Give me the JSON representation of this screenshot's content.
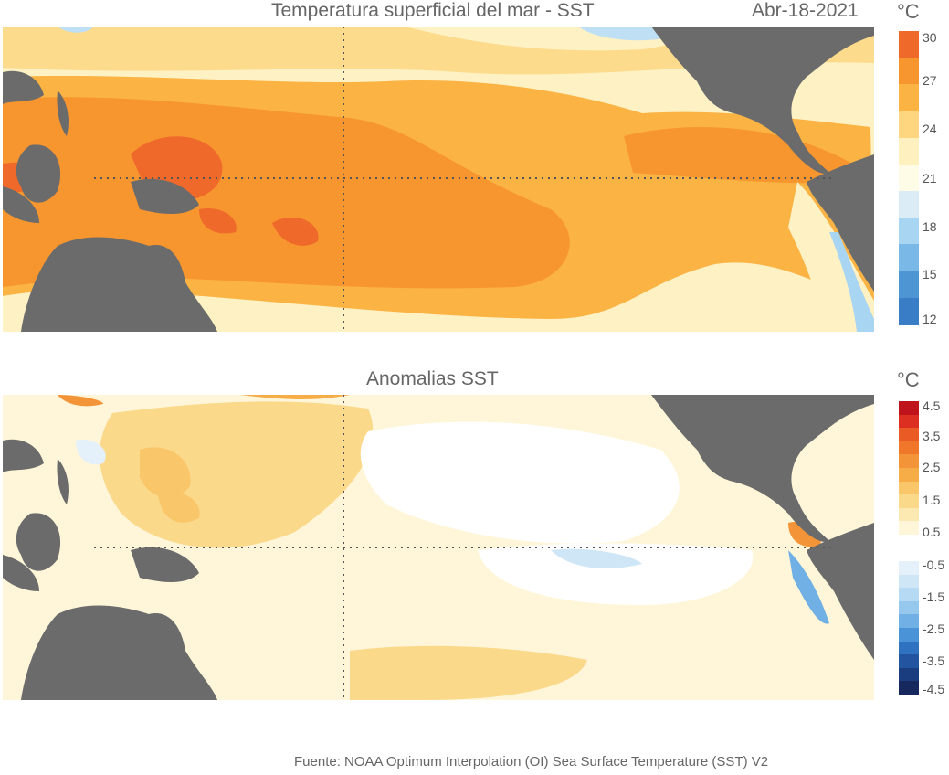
{
  "top_panel": {
    "title": "Temperatura superficial del mar - SST",
    "date": "Abr-18-2021",
    "unit": "°C",
    "colorbar_ticks": [
      "30",
      "27",
      "24",
      "21",
      "18",
      "15",
      "12"
    ],
    "colorbar_colors": [
      "#ef6a2a",
      "#f7962f",
      "#fbb344",
      "#fdd67f",
      "#fff1bf",
      "#fefbe6",
      "#dcecf6",
      "#a8d5f1",
      "#79b8e7",
      "#4d95d3",
      "#3a7dc7"
    ]
  },
  "bottom_panel": {
    "title": "Anomalias SST",
    "unit": "°C",
    "colorbar_ticks": [
      "4.5",
      "3.5",
      "2.5",
      "1.5",
      "0.5",
      "-0.5",
      "-1.5",
      "-2.5",
      "-3.5",
      "-4.5"
    ],
    "colorbar_colors": [
      "#c0141d",
      "#dc2f21",
      "#ea5a25",
      "#f0772a",
      "#f39438",
      "#f6ad48",
      "#f9c66a",
      "#fbd98b",
      "#fce9b2",
      "#fff6d9",
      "#ffffff",
      "#ffffff",
      "#e4f1fa",
      "#cfe6f6",
      "#b6daf3",
      "#96c8ee",
      "#70b0e4",
      "#4a93d6",
      "#2e72c1",
      "#22549f",
      "#1a3d80",
      "#16285e"
    ]
  },
  "land_color": "#6b6b6b",
  "source": "Fuente: NOAA Optimum Interpolation (OI) Sea Surface Temperature (SST) V2"
}
